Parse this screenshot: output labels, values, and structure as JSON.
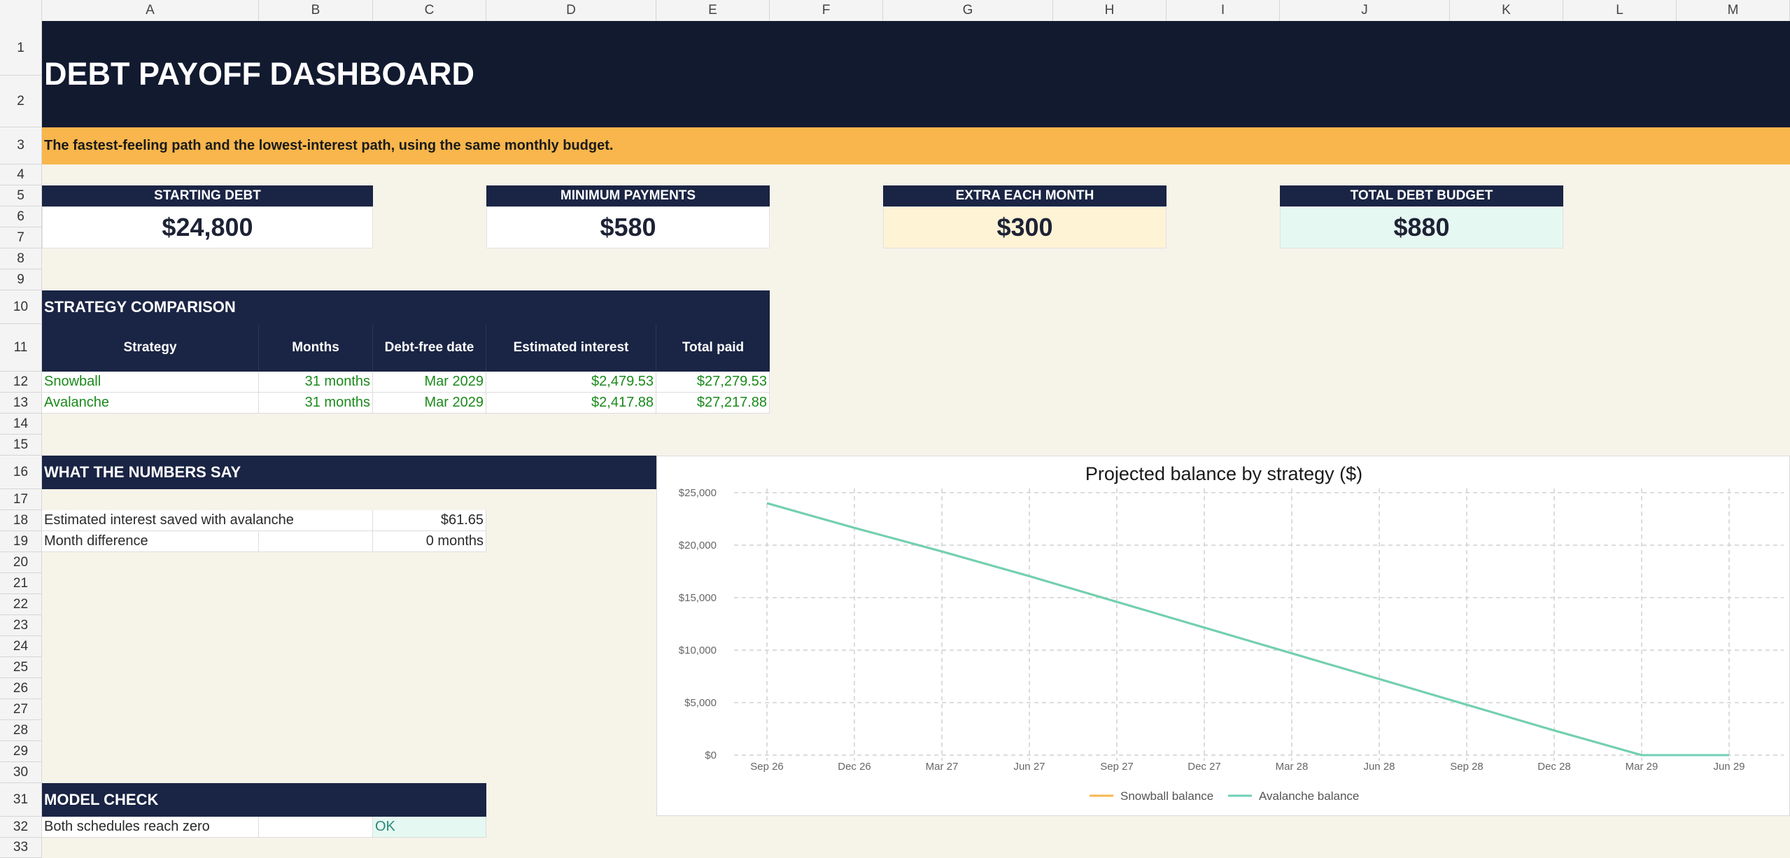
{
  "columns": [
    "A",
    "B",
    "C",
    "D",
    "E",
    "F",
    "G",
    "H",
    "I",
    "J",
    "K",
    "L",
    "M"
  ],
  "rows": [
    "1",
    "2",
    "3",
    "4",
    "5",
    "6",
    "7",
    "8",
    "9",
    "10",
    "11",
    "12",
    "13",
    "14",
    "15",
    "16",
    "17",
    "18",
    "19",
    "20",
    "21",
    "22",
    "23",
    "24",
    "25",
    "26",
    "27",
    "28",
    "29",
    "30",
    "31",
    "32",
    "33"
  ],
  "title": "DEBT PAYOFF DASHBOARD",
  "subtitle": "The fastest-feeling path and the lowest-interest path, using the same monthly budget.",
  "kpis": {
    "starting_debt": {
      "label": "STARTING DEBT",
      "value": "$24,800"
    },
    "minimum_payments": {
      "label": "MINIMUM PAYMENTS",
      "value": "$580"
    },
    "extra_each_month": {
      "label": "EXTRA EACH MONTH",
      "value": "$300"
    },
    "total_debt_budget": {
      "label": "TOTAL DEBT BUDGET",
      "value": "$880"
    }
  },
  "strategy": {
    "heading": "STRATEGY COMPARISON",
    "headers": {
      "strategy": "Strategy",
      "months": "Months",
      "date": "Debt-free date",
      "interest": "Estimated interest",
      "total": "Total paid"
    },
    "rows": [
      {
        "strategy": "Snowball",
        "months": "31 months",
        "date": "Mar 2029",
        "interest": "$2,479.53",
        "total": "$27,279.53"
      },
      {
        "strategy": "Avalanche",
        "months": "31 months",
        "date": "Mar 2029",
        "interest": "$2,417.88",
        "total": "$27,217.88"
      }
    ]
  },
  "numbers": {
    "heading": "WHAT THE NUMBERS SAY",
    "interest_saved_label": "Estimated interest saved with avalanche",
    "interest_saved_value": "$61.65",
    "month_diff_label": "Month difference",
    "month_diff_value": "0 months"
  },
  "model_check": {
    "heading": "MODEL CHECK",
    "label": "Both schedules reach zero",
    "status": "OK"
  },
  "colors": {
    "snowball": "#f8b64c",
    "avalanche": "#6fd1b4",
    "navy": "#121a30",
    "amber": "#f8b64c"
  },
  "chart_data": {
    "type": "line",
    "title": "Projected balance by strategy ($)",
    "x": [
      "Sep 26",
      "Dec 26",
      "Mar 27",
      "Jun 27",
      "Sep 27",
      "Dec 27",
      "Mar 28",
      "Jun 28",
      "Sep 28",
      "Dec 28",
      "Mar 29",
      "Jun 29"
    ],
    "y_ticks": [
      "$0",
      "$5,000",
      "$10,000",
      "$15,000",
      "$20,000",
      "$25,000"
    ],
    "ylim": [
      0,
      25000
    ],
    "grid": true,
    "legend": "bottom",
    "series": [
      {
        "name": "Snowball balance",
        "values": [
          24000,
          21650,
          19400,
          17050,
          14600,
          12150,
          9700,
          7250,
          4800,
          2350,
          0,
          0
        ]
      },
      {
        "name": "Avalanche balance",
        "values": [
          24000,
          21650,
          19400,
          17050,
          14600,
          12150,
          9700,
          7250,
          4800,
          2350,
          0,
          0
        ]
      }
    ]
  }
}
